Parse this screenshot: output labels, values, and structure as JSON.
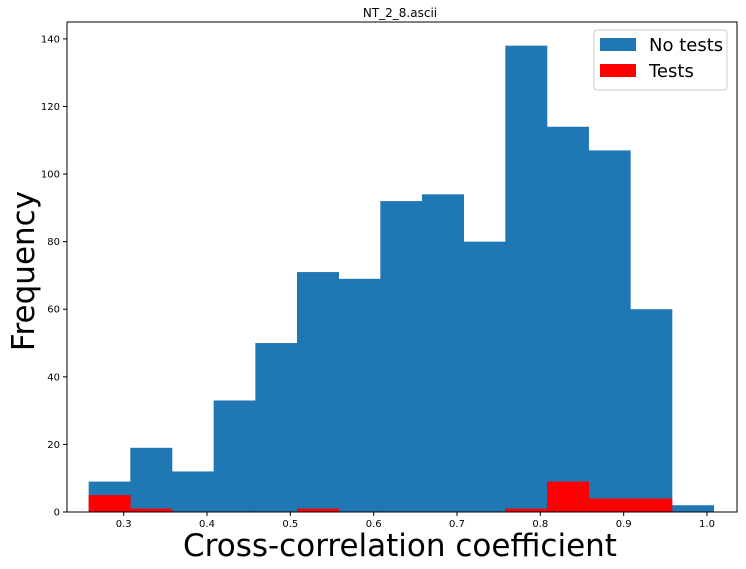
{
  "chart_data": {
    "type": "bar",
    "title": "NT_2_8.ascii",
    "xlabel": "Cross-correlation coefficient",
    "ylabel": "Frequency",
    "xlim": [
      0.232,
      1.036
    ],
    "ylim": [
      0,
      145
    ],
    "xticks": [
      "0.3",
      "0.4",
      "0.5",
      "0.6",
      "0.7",
      "0.8",
      "0.9",
      "1.0"
    ],
    "xtick_values": [
      0.3,
      0.4,
      0.5,
      0.6,
      0.7,
      0.8,
      0.9,
      1.0
    ],
    "yticks": [
      "0",
      "20",
      "40",
      "60",
      "80",
      "100",
      "120",
      "140"
    ],
    "ytick_values": [
      0,
      20,
      40,
      60,
      80,
      100,
      120,
      140
    ],
    "legend_position": "top-right",
    "grid": false,
    "series": [
      {
        "name": "No tests",
        "color": "#1f77b4",
        "bins": [
          {
            "x0": 0.258,
            "x1": 0.308,
            "y": 9
          },
          {
            "x0": 0.308,
            "x1": 0.358,
            "y": 19
          },
          {
            "x0": 0.358,
            "x1": 0.408,
            "y": 12
          },
          {
            "x0": 0.408,
            "x1": 0.458,
            "y": 33
          },
          {
            "x0": 0.458,
            "x1": 0.508,
            "y": 50
          },
          {
            "x0": 0.508,
            "x1": 0.558,
            "y": 71
          },
          {
            "x0": 0.558,
            "x1": 0.608,
            "y": 69
          },
          {
            "x0": 0.608,
            "x1": 0.658,
            "y": 92
          },
          {
            "x0": 0.658,
            "x1": 0.708,
            "y": 94
          },
          {
            "x0": 0.708,
            "x1": 0.758,
            "y": 80
          },
          {
            "x0": 0.758,
            "x1": 0.808,
            "y": 138
          },
          {
            "x0": 0.808,
            "x1": 0.858,
            "y": 114
          },
          {
            "x0": 0.858,
            "x1": 0.908,
            "y": 107
          },
          {
            "x0": 0.908,
            "x1": 0.958,
            "y": 60
          },
          {
            "x0": 0.958,
            "x1": 1.008,
            "y": 2
          }
        ]
      },
      {
        "name": "Tests",
        "color": "#ff0000",
        "bins": [
          {
            "x0": 0.258,
            "x1": 0.308,
            "y": 5
          },
          {
            "x0": 0.308,
            "x1": 0.358,
            "y": 1
          },
          {
            "x0": 0.508,
            "x1": 0.558,
            "y": 1
          },
          {
            "x0": 0.758,
            "x1": 0.808,
            "y": 1
          },
          {
            "x0": 0.808,
            "x1": 0.858,
            "y": 9
          },
          {
            "x0": 0.858,
            "x1": 0.908,
            "y": 4
          },
          {
            "x0": 0.908,
            "x1": 0.958,
            "y": 4
          }
        ]
      }
    ]
  }
}
